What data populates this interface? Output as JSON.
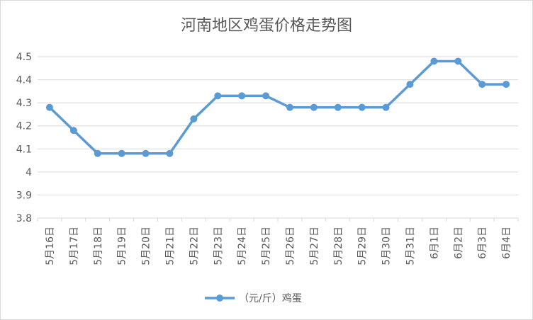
{
  "chart_data": {
    "type": "line",
    "title": "河南地区鸡蛋价格走势图",
    "xlabel": "",
    "ylabel": "",
    "categories": [
      "5月16日",
      "5月17日",
      "5月18日",
      "5月19日",
      "5月20日",
      "5月21日",
      "5月22日",
      "5月23日",
      "5月24日",
      "5月25日",
      "5月26日",
      "5月27日",
      "5月28日",
      "5月29日",
      "5月30日",
      "5月31日",
      "6月1日",
      "6月2日",
      "6月3日",
      "6月4日"
    ],
    "series": [
      {
        "name": "（元/斤）鸡蛋",
        "values": [
          4.28,
          4.18,
          4.08,
          4.08,
          4.08,
          4.08,
          4.23,
          4.33,
          4.33,
          4.33,
          4.28,
          4.28,
          4.28,
          4.28,
          4.28,
          4.38,
          4.48,
          4.48,
          4.38,
          4.38
        ],
        "color": "#5b9bd5"
      }
    ],
    "ylim": [
      3.8,
      4.5
    ],
    "yticks": [
      "3.8",
      "3.9",
      "4",
      "4.1",
      "4.2",
      "4.3",
      "4.4",
      "4.5"
    ],
    "grid": true,
    "legend": "bottom-center"
  }
}
